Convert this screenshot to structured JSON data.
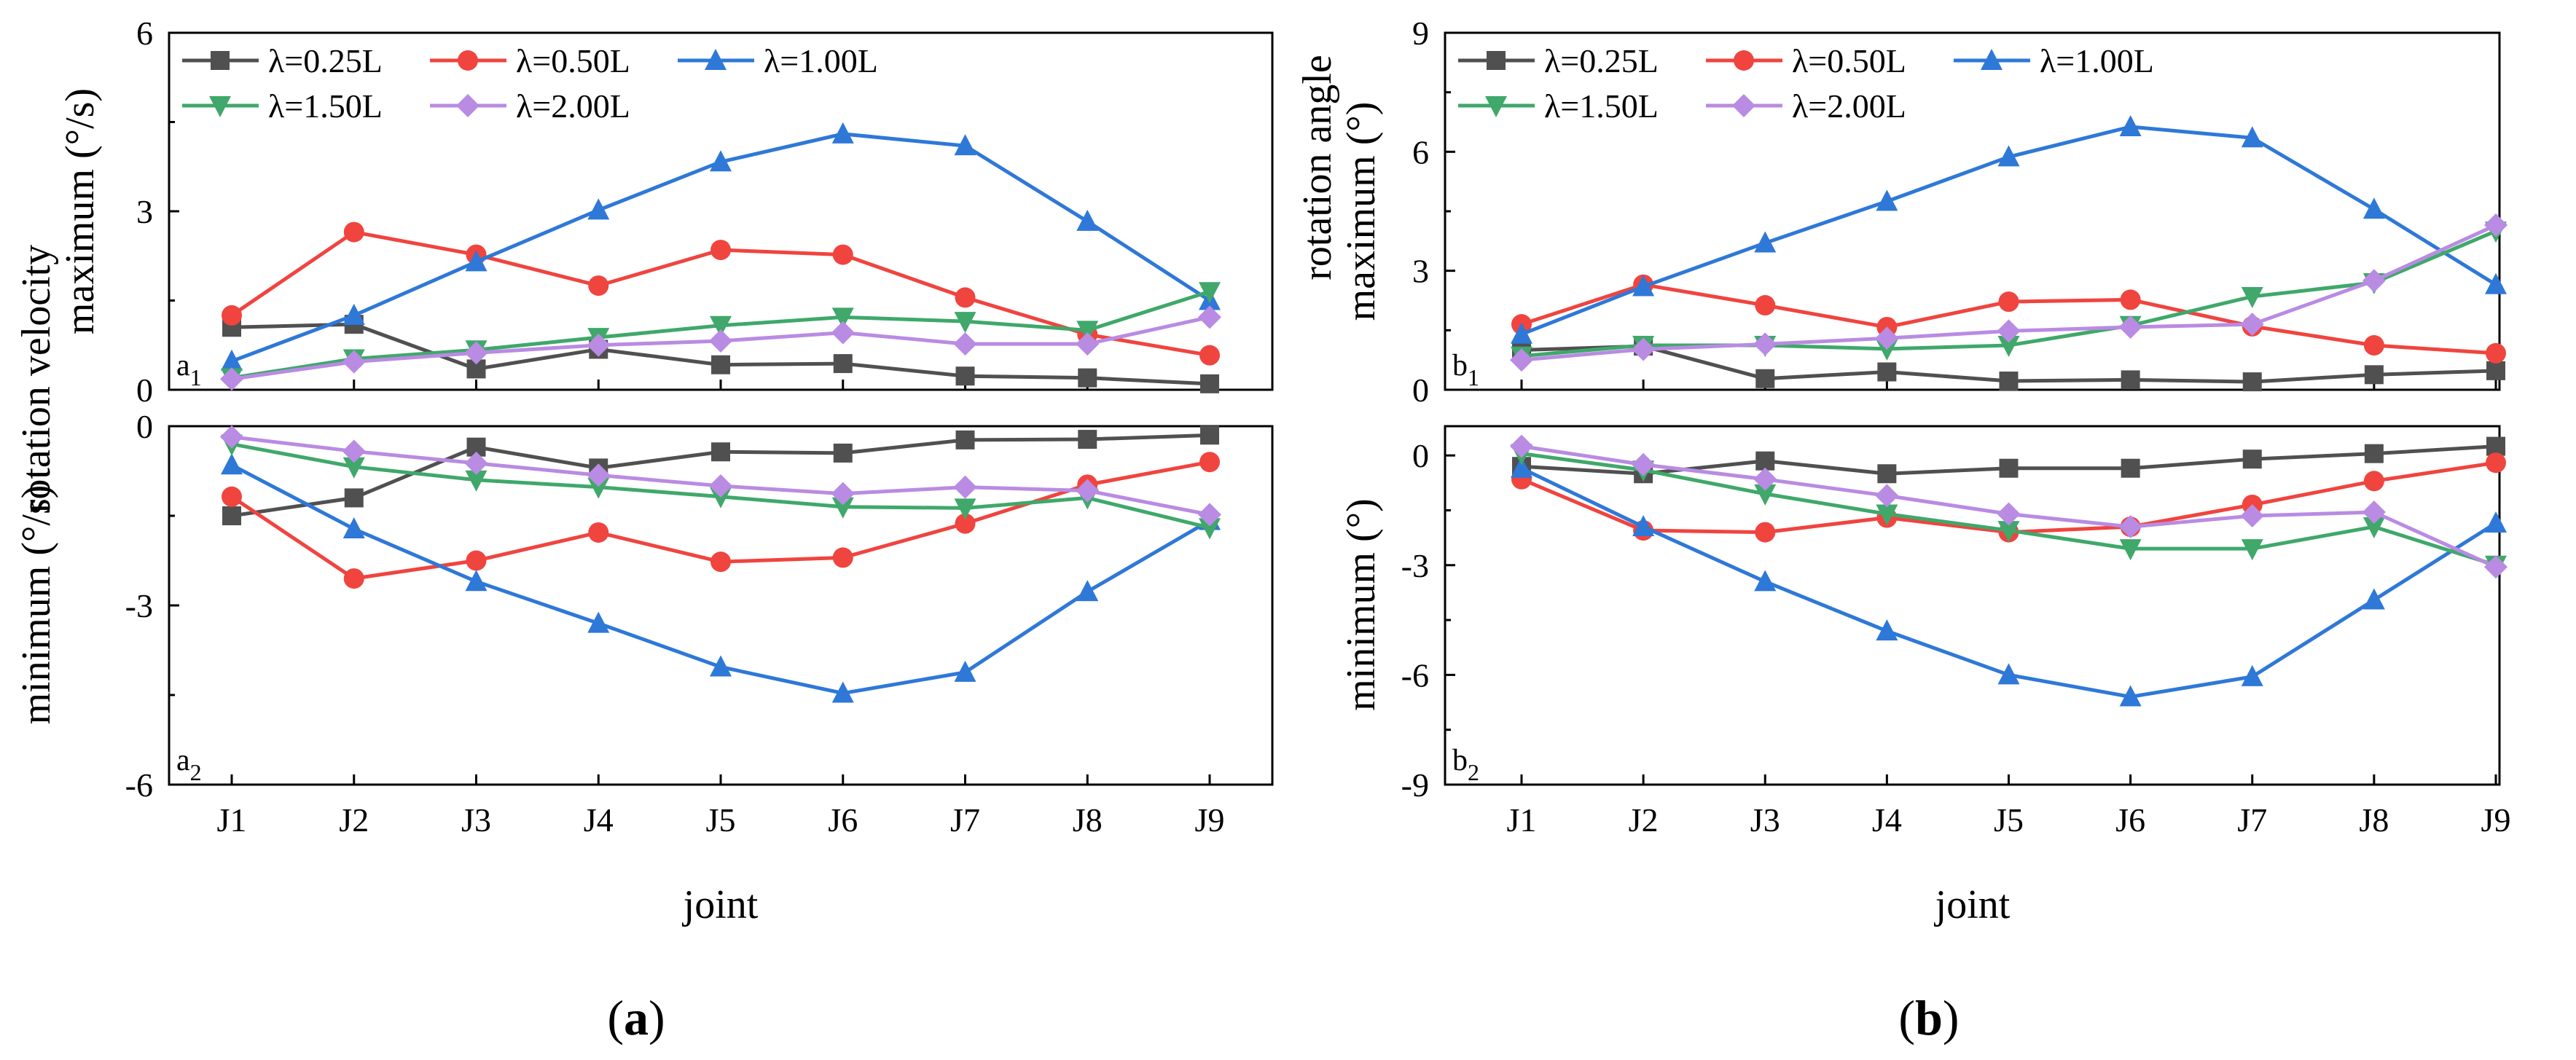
{
  "series_styles": [
    {
      "name": "λ=0.25L",
      "color": "#505050",
      "marker": "square"
    },
    {
      "name": "λ=0.50L",
      "color": "#f0443f",
      "marker": "circle"
    },
    {
      "name": "λ=1.00L",
      "color": "#2e78d8",
      "marker": "triangle-up"
    },
    {
      "name": "λ=1.50L",
      "color": "#3fa86a",
      "marker": "triangle-down"
    },
    {
      "name": "λ=2.00L",
      "color": "#b98be3",
      "marker": "diamond"
    }
  ],
  "panels": [
    {
      "letter": "a",
      "caption": "(a)",
      "ylabel_top": "maximum (°/s)",
      "ylabel_mid": "rotation velocity",
      "ylabel_bottom": "minimum (°/s)",
      "xlabel": "joint"
    },
    {
      "letter": "b",
      "caption": "(b)",
      "ylabel_top": "maximum (°)",
      "ylabel_mid": "rotation angle",
      "ylabel_bottom": "minimum (°)",
      "xlabel": "joint"
    }
  ],
  "chart_data": [
    {
      "id": "a1",
      "type": "line",
      "corner_label": "a1",
      "categories": [
        "J1",
        "J2",
        "J3",
        "J4",
        "J5",
        "J6",
        "J7",
        "J8",
        "J9"
      ],
      "ylim": [
        0,
        6
      ],
      "yticks": [
        "0",
        "3",
        "6"
      ],
      "ylabel": "maximum (°/s)",
      "series": [
        {
          "name": "λ=0.25L",
          "values": [
            1.05,
            1.1,
            0.35,
            0.68,
            0.42,
            0.44,
            0.23,
            0.2,
            0.1
          ]
        },
        {
          "name": "λ=0.50L",
          "values": [
            1.25,
            2.65,
            2.27,
            1.75,
            2.35,
            2.27,
            1.55,
            0.93,
            0.58
          ]
        },
        {
          "name": "λ=1.00L",
          "values": [
            0.48,
            1.25,
            2.15,
            3.02,
            3.83,
            4.3,
            4.1,
            2.83,
            1.5
          ]
        },
        {
          "name": "λ=1.50L",
          "values": [
            0.2,
            0.52,
            0.67,
            0.88,
            1.08,
            1.22,
            1.15,
            1.0,
            1.65
          ]
        },
        {
          "name": "λ=2.00L",
          "values": [
            0.18,
            0.47,
            0.62,
            0.75,
            0.82,
            0.96,
            0.77,
            0.77,
            1.22
          ]
        }
      ]
    },
    {
      "id": "a2",
      "type": "line",
      "corner_label": "a2",
      "categories": [
        "J1",
        "J2",
        "J3",
        "J4",
        "J5",
        "J6",
        "J7",
        "J8",
        "J9"
      ],
      "ylim": [
        -6,
        0
      ],
      "yticks": [
        "-6",
        "-3",
        "0"
      ],
      "xlabel": "joint",
      "ylabel": "minimum (°/s)",
      "series": [
        {
          "name": "λ=0.25L",
          "values": [
            -1.5,
            -1.2,
            -0.35,
            -0.7,
            -0.43,
            -0.45,
            -0.23,
            -0.22,
            -0.15
          ]
        },
        {
          "name": "λ=0.50L",
          "values": [
            -1.18,
            -2.55,
            -2.25,
            -1.78,
            -2.27,
            -2.2,
            -1.63,
            -0.98,
            -0.6
          ]
        },
        {
          "name": "λ=1.00L",
          "values": [
            -0.65,
            -1.72,
            -2.6,
            -3.3,
            -4.03,
            -4.47,
            -4.12,
            -2.77,
            -1.58
          ]
        },
        {
          "name": "λ=1.50L",
          "values": [
            -0.3,
            -0.68,
            -0.9,
            -1.02,
            -1.18,
            -1.35,
            -1.37,
            -1.2,
            -1.7
          ]
        },
        {
          "name": "λ=2.00L",
          "values": [
            -0.18,
            -0.42,
            -0.62,
            -0.82,
            -1.0,
            -1.13,
            -1.02,
            -1.08,
            -1.48
          ]
        }
      ]
    },
    {
      "id": "b1",
      "type": "line",
      "corner_label": "b1",
      "categories": [
        "J1",
        "J2",
        "J3",
        "J4",
        "J5",
        "J6",
        "J7",
        "J8",
        "J9"
      ],
      "ylim": [
        0,
        9
      ],
      "yticks": [
        "0",
        "3",
        "6",
        "9"
      ],
      "ylabel": "maximum (°)",
      "series": [
        {
          "name": "λ=0.25L",
          "values": [
            1.0,
            1.1,
            0.28,
            0.45,
            0.22,
            0.25,
            0.2,
            0.38,
            0.48
          ]
        },
        {
          "name": "λ=0.50L",
          "values": [
            1.65,
            2.65,
            2.13,
            1.58,
            2.22,
            2.27,
            1.6,
            1.12,
            0.92
          ]
        },
        {
          "name": "λ=1.00L",
          "values": [
            1.4,
            2.6,
            3.7,
            4.75,
            5.87,
            6.63,
            6.35,
            4.55,
            2.65
          ]
        },
        {
          "name": "λ=1.50L",
          "values": [
            0.85,
            1.12,
            1.12,
            1.03,
            1.12,
            1.62,
            2.35,
            2.7,
            4.0
          ]
        },
        {
          "name": "λ=2.00L",
          "values": [
            0.75,
            1.02,
            1.15,
            1.3,
            1.48,
            1.58,
            1.65,
            2.75,
            4.15
          ]
        }
      ]
    },
    {
      "id": "b2",
      "type": "line",
      "corner_label": "b2",
      "categories": [
        "J1",
        "J2",
        "J3",
        "J4",
        "J5",
        "J6",
        "J7",
        "J8",
        "J9"
      ],
      "ylim": [
        -9,
        0.8
      ],
      "yticks": [
        "-9",
        "-6",
        "-3",
        "0"
      ],
      "xlabel": "joint",
      "ylabel": "minimum (°)",
      "series": [
        {
          "name": "λ=0.25L",
          "values": [
            -0.3,
            -0.5,
            -0.15,
            -0.5,
            -0.35,
            -0.35,
            -0.1,
            0.05,
            0.25
          ]
        },
        {
          "name": "λ=0.50L",
          "values": [
            -0.65,
            -2.05,
            -2.1,
            -1.7,
            -2.1,
            -1.95,
            -1.35,
            -0.7,
            -0.2
          ]
        },
        {
          "name": "λ=1.00L",
          "values": [
            -0.35,
            -1.95,
            -3.45,
            -4.8,
            -6.0,
            -6.6,
            -6.05,
            -3.95,
            -1.85
          ]
        },
        {
          "name": "λ=1.50L",
          "values": [
            0.05,
            -0.4,
            -1.05,
            -1.6,
            -2.05,
            -2.55,
            -2.55,
            -1.95,
            -3.0
          ]
        },
        {
          "name": "λ=2.00L",
          "values": [
            0.25,
            -0.25,
            -0.65,
            -1.1,
            -1.6,
            -1.95,
            -1.65,
            -1.55,
            -3.05
          ]
        }
      ]
    }
  ]
}
